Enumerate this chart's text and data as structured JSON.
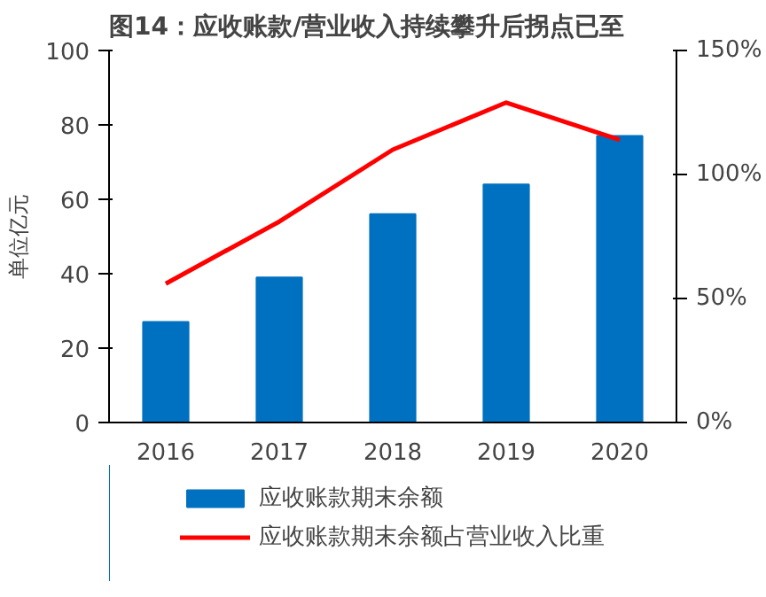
{
  "chart_data": {
    "type": "bar",
    "title": "图14：应收账款/营业收入持续攀升后拐点已至",
    "ylabel": "单位亿元",
    "categories": [
      "2016",
      "2017",
      "2018",
      "2019",
      "2020"
    ],
    "series": [
      {
        "name": "应收账款期末余额",
        "color": "#0070c0",
        "values": [
          27,
          39,
          56,
          64,
          77
        ]
      },
      {
        "name": "应收账款期末余额占营业收入比重",
        "type": "line",
        "axis": "y2",
        "color": "#ff0000",
        "values": [
          56,
          81,
          110,
          129,
          114
        ]
      }
    ],
    "ylim": [
      0,
      100
    ],
    "yticks": [
      0,
      20,
      40,
      60,
      80,
      100
    ],
    "y2lim": [
      0,
      150
    ],
    "y2ticks": [
      {
        "value": 0,
        "label": "0%"
      },
      {
        "value": 50,
        "label": "50%"
      },
      {
        "value": 100,
        "label": "100%"
      },
      {
        "value": 150,
        "label": "150%"
      }
    ],
    "legend": "bottom",
    "grid": false
  }
}
